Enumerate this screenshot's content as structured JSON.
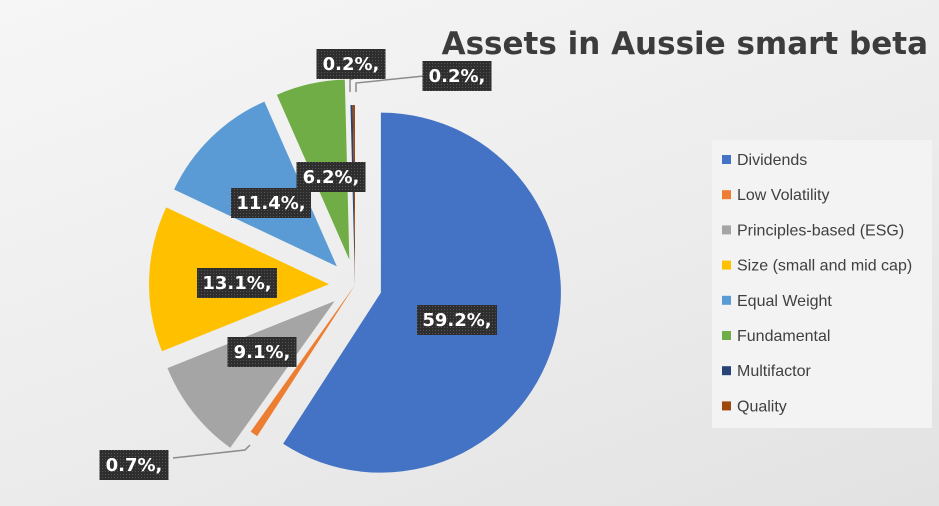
{
  "chart_data": {
    "type": "pie",
    "title": "Assets in Aussie smart beta",
    "slices": [
      {
        "name": "Dividends",
        "value": 59.2,
        "label": "59.2%,",
        "color": "#4472c4"
      },
      {
        "name": "Low Volatility",
        "value": 0.7,
        "label": "0.7%,",
        "color": "#ed7d31"
      },
      {
        "name": "Principles-based (ESG)",
        "value": 9.1,
        "label": "9.1%,",
        "color": "#a5a5a5"
      },
      {
        "name": "Size (small and mid cap)",
        "value": 13.1,
        "label": "13.1%,",
        "color": "#ffc000"
      },
      {
        "name": "Equal Weight",
        "value": 11.4,
        "label": "11.4%,",
        "color": "#5b9bd5"
      },
      {
        "name": "Fundamental",
        "value": 6.2,
        "label": "6.2%,",
        "color": "#70ad47"
      },
      {
        "name": "Multifactor",
        "value": 0.2,
        "label": "0.2%,",
        "color": "#264478"
      },
      {
        "name": "Quality",
        "value": 0.2,
        "label": "0.2%,",
        "color": "#9e480e"
      }
    ],
    "legend": {
      "position": "right"
    }
  }
}
